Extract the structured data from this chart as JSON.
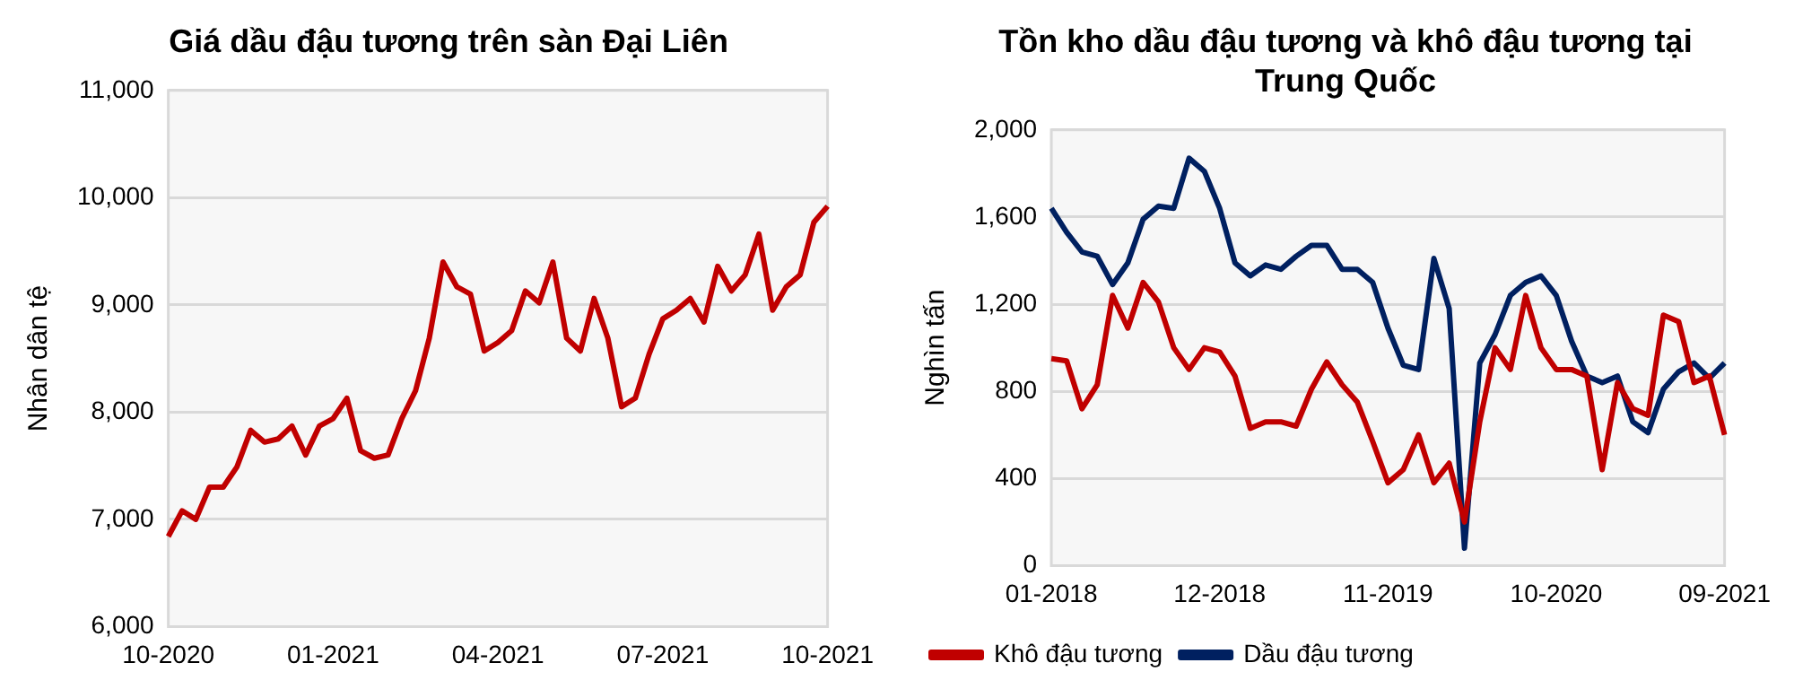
{
  "chart_data": [
    {
      "type": "line",
      "title": "Giá dầu đậu tương trên sàn Đại Liên",
      "ylabel": "Nhân dân tệ",
      "grid": "y",
      "legend": false,
      "marker": "none",
      "line_style": "solid",
      "categories": [
        "10-2020",
        null,
        null,
        null,
        null,
        null,
        null,
        null,
        null,
        null,
        null,
        null,
        "01-2021",
        null,
        null,
        null,
        null,
        null,
        null,
        null,
        null,
        null,
        null,
        null,
        "04-2021",
        null,
        null,
        null,
        null,
        null,
        null,
        null,
        null,
        null,
        null,
        null,
        "07-2021",
        null,
        null,
        null,
        null,
        null,
        null,
        null,
        null,
        null,
        null,
        null,
        "10-2021"
      ],
      "ylim": [
        6000,
        11000
      ],
      "yticks": [
        {
          "value": 6000,
          "label": "6,000"
        },
        {
          "value": 7000,
          "label": "7,000"
        },
        {
          "value": 8000,
          "label": "8,000"
        },
        {
          "value": 9000,
          "label": "9,000"
        },
        {
          "value": 10000,
          "label": "10,000"
        },
        {
          "value": 11000,
          "label": "11,000"
        }
      ],
      "series": [
        {
          "color": "#c00000",
          "values": [
            6840,
            7080,
            7000,
            7300,
            7300,
            7490,
            7830,
            7720,
            7750,
            7870,
            7600,
            7870,
            7940,
            8130,
            7640,
            7570,
            7600,
            7940,
            8200,
            8690,
            9400,
            9170,
            9100,
            8570,
            8650,
            8760,
            9130,
            9020,
            9400,
            8690,
            8570,
            9060,
            8690,
            8050,
            8130,
            8540,
            8870,
            8950,
            9060,
            8840,
            9360,
            9130,
            9280,
            9660,
            8950,
            9170,
            9280,
            9770,
            9920
          ]
        }
      ]
    },
    {
      "type": "line",
      "title": "Tồn kho dầu đậu tương và khô đậu tương tại Trung Quốc",
      "ylabel": "Nghìn tấn",
      "grid": "y",
      "legend": "bottom left",
      "marker": "none",
      "line_style": "solid",
      "categories": [
        "01-2018",
        null,
        null,
        null,
        null,
        null,
        null,
        null,
        null,
        null,
        null,
        "12-2018",
        null,
        null,
        null,
        null,
        null,
        null,
        null,
        null,
        null,
        null,
        "11-2019",
        null,
        null,
        null,
        null,
        null,
        null,
        null,
        null,
        null,
        null,
        "10-2020",
        null,
        null,
        null,
        null,
        null,
        null,
        null,
        null,
        null,
        null,
        "09-2021"
      ],
      "ylim": [
        0,
        2000
      ],
      "yticks": [
        {
          "value": 0,
          "label": "0"
        },
        {
          "value": 400,
          "label": "400"
        },
        {
          "value": 800,
          "label": "800"
        },
        {
          "value": 1200,
          "label": "1,200"
        },
        {
          "value": 1600,
          "label": "1,600"
        },
        {
          "value": 2000,
          "label": "2,000"
        }
      ],
      "series": [
        {
          "name": "Dầu đậu tương",
          "color": "#002060",
          "values": [
            1640,
            1530,
            1440,
            1420,
            1290,
            1390,
            1590,
            1650,
            1640,
            1870,
            1810,
            1640,
            1390,
            1330,
            1380,
            1360,
            1420,
            1470,
            1470,
            1360,
            1360,
            1300,
            1090,
            920,
            900,
            1410,
            1180,
            80,
            930,
            1060,
            1240,
            1300,
            1330,
            1240,
            1030,
            870,
            840,
            870,
            660,
            610,
            810,
            890,
            930,
            860,
            930
          ]
        },
        {
          "name": "Khô đậu tương",
          "color": "#c00000",
          "values": [
            950,
            940,
            720,
            830,
            1240,
            1090,
            1300,
            1210,
            1000,
            900,
            1000,
            980,
            870,
            630,
            660,
            660,
            640,
            810,
            935,
            830,
            750,
            570,
            380,
            440,
            600,
            380,
            470,
            200,
            660,
            1000,
            900,
            1240,
            1000,
            900,
            900,
            870,
            440,
            840,
            720,
            690,
            1150,
            1120,
            840,
            870,
            600
          ]
        }
      ]
    }
  ]
}
